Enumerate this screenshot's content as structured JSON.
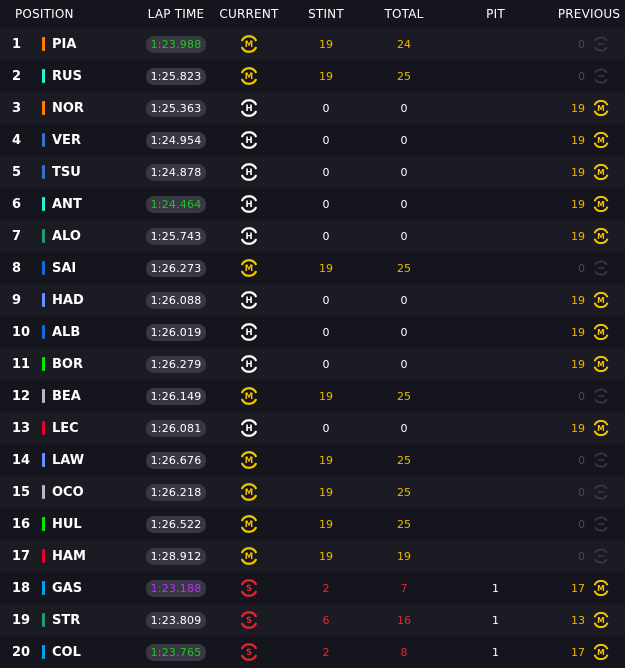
{
  "header": {
    "position": "POSITION",
    "lap_time": "LAP TIME",
    "current": "CURRENT",
    "stint": "STINT",
    "total": "TOTAL",
    "pit": "PIT",
    "previous": "PREVIOUS"
  },
  "colors": {
    "medium": "#f5c400",
    "hard": "#ffffff",
    "soft": "#e8262c",
    "fastest": "#1ec71e",
    "overall_fastest": "#c02bff",
    "stint_medium": "#f0b400",
    "stint_soft": "#e8262c"
  },
  "rows": [
    {
      "pos": "1",
      "code": "PIA",
      "team_color": "#ff8000",
      "lap": "1:23.988",
      "lap_color": "#1ec71e",
      "current": "M",
      "stint": "19",
      "total": "24",
      "pit": "",
      "prev_num": "0",
      "prev": "none"
    },
    {
      "pos": "2",
      "code": "RUS",
      "team_color": "#27f4d2",
      "lap": "1:25.823",
      "lap_color": "#ffffff",
      "current": "M",
      "stint": "19",
      "total": "25",
      "pit": "",
      "prev_num": "0",
      "prev": "none"
    },
    {
      "pos": "3",
      "code": "NOR",
      "team_color": "#ff8000",
      "lap": "1:25.363",
      "lap_color": "#ffffff",
      "current": "H",
      "stint": "0",
      "total": "0",
      "pit": "",
      "prev_num": "19",
      "prev": "M"
    },
    {
      "pos": "4",
      "code": "VER",
      "team_color": "#3671c6",
      "lap": "1:24.954",
      "lap_color": "#ffffff",
      "current": "H",
      "stint": "0",
      "total": "0",
      "pit": "",
      "prev_num": "19",
      "prev": "M"
    },
    {
      "pos": "5",
      "code": "TSU",
      "team_color": "#3671c6",
      "lap": "1:24.878",
      "lap_color": "#ffffff",
      "current": "H",
      "stint": "0",
      "total": "0",
      "pit": "",
      "prev_num": "19",
      "prev": "M"
    },
    {
      "pos": "6",
      "code": "ANT",
      "team_color": "#27f4d2",
      "lap": "1:24.464",
      "lap_color": "#1ec71e",
      "current": "H",
      "stint": "0",
      "total": "0",
      "pit": "",
      "prev_num": "19",
      "prev": "M"
    },
    {
      "pos": "7",
      "code": "ALO",
      "team_color": "#229971",
      "lap": "1:25.743",
      "lap_color": "#ffffff",
      "current": "H",
      "stint": "0",
      "total": "0",
      "pit": "",
      "prev_num": "19",
      "prev": "M"
    },
    {
      "pos": "8",
      "code": "SAI",
      "team_color": "#1868db",
      "lap": "1:26.273",
      "lap_color": "#ffffff",
      "current": "M",
      "stint": "19",
      "total": "25",
      "pit": "",
      "prev_num": "0",
      "prev": "none"
    },
    {
      "pos": "9",
      "code": "HAD",
      "team_color": "#6692ff",
      "lap": "1:26.088",
      "lap_color": "#ffffff",
      "current": "H",
      "stint": "0",
      "total": "0",
      "pit": "",
      "prev_num": "19",
      "prev": "M"
    },
    {
      "pos": "10",
      "code": "ALB",
      "team_color": "#1868db",
      "lap": "1:26.019",
      "lap_color": "#ffffff",
      "current": "H",
      "stint": "0",
      "total": "0",
      "pit": "",
      "prev_num": "19",
      "prev": "M"
    },
    {
      "pos": "11",
      "code": "BOR",
      "team_color": "#00e700",
      "lap": "1:26.279",
      "lap_color": "#ffffff",
      "current": "H",
      "stint": "0",
      "total": "0",
      "pit": "",
      "prev_num": "19",
      "prev": "M"
    },
    {
      "pos": "12",
      "code": "BEA",
      "team_color": "#b6babd",
      "lap": "1:26.149",
      "lap_color": "#ffffff",
      "current": "M",
      "stint": "19",
      "total": "25",
      "pit": "",
      "prev_num": "0",
      "prev": "none"
    },
    {
      "pos": "13",
      "code": "LEC",
      "team_color": "#e8002d",
      "lap": "1:26.081",
      "lap_color": "#ffffff",
      "current": "H",
      "stint": "0",
      "total": "0",
      "pit": "",
      "prev_num": "19",
      "prev": "M"
    },
    {
      "pos": "14",
      "code": "LAW",
      "team_color": "#6692ff",
      "lap": "1:26.676",
      "lap_color": "#ffffff",
      "current": "M",
      "stint": "19",
      "total": "25",
      "pit": "",
      "prev_num": "0",
      "prev": "none"
    },
    {
      "pos": "15",
      "code": "OCO",
      "team_color": "#b6babd",
      "lap": "1:26.218",
      "lap_color": "#ffffff",
      "current": "M",
      "stint": "19",
      "total": "25",
      "pit": "",
      "prev_num": "0",
      "prev": "none"
    },
    {
      "pos": "16",
      "code": "HUL",
      "team_color": "#00e700",
      "lap": "1:26.522",
      "lap_color": "#ffffff",
      "current": "M",
      "stint": "19",
      "total": "25",
      "pit": "",
      "prev_num": "0",
      "prev": "none"
    },
    {
      "pos": "17",
      "code": "HAM",
      "team_color": "#e8002d",
      "lap": "1:28.912",
      "lap_color": "#ffffff",
      "current": "M",
      "stint": "19",
      "total": "19",
      "pit": "",
      "prev_num": "0",
      "prev": "none"
    },
    {
      "pos": "18",
      "code": "GAS",
      "team_color": "#00a1e8",
      "lap": "1:23.188",
      "lap_color": "#c02bff",
      "current": "S",
      "stint": "2",
      "total": "7",
      "pit": "1",
      "prev_num": "17",
      "prev": "M"
    },
    {
      "pos": "19",
      "code": "STR",
      "team_color": "#229971",
      "lap": "1:23.809",
      "lap_color": "#ffffff",
      "current": "S",
      "stint": "6",
      "total": "16",
      "pit": "1",
      "prev_num": "13",
      "prev": "M"
    },
    {
      "pos": "20",
      "code": "COL",
      "team_color": "#00a1e8",
      "lap": "1:23.765",
      "lap_color": "#1ec71e",
      "current": "S",
      "stint": "2",
      "total": "8",
      "pit": "1",
      "prev_num": "17",
      "prev": "M"
    }
  ]
}
